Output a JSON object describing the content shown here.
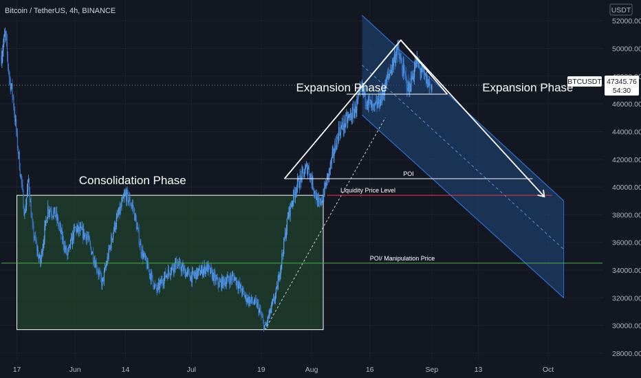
{
  "chart_data": {
    "type": "candlestick",
    "title": "Bitcoin / TetherUS, 4h, BINANCE",
    "currency": "USDT",
    "symbol": "BTCUSDT",
    "last_price_label": "47345.76",
    "countdown_label": "54:30",
    "last_price": 47345.76,
    "ylim": [
      27500,
      53500
    ],
    "y_ticks": [
      {
        "value": 28000,
        "label": "28000.00"
      },
      {
        "value": 30000,
        "label": "30000.00"
      },
      {
        "value": 32000,
        "label": "32000.00"
      },
      {
        "value": 34000,
        "label": "34000.00"
      },
      {
        "value": 36000,
        "label": "36000.00"
      },
      {
        "value": 38000,
        "label": "38000.00"
      },
      {
        "value": 40000,
        "label": "40000.00"
      },
      {
        "value": 42000,
        "label": "42000.00"
      },
      {
        "value": 44000,
        "label": "44000.00"
      },
      {
        "value": 46000,
        "label": "46000.00"
      },
      {
        "value": 48000,
        "label": "48000.00"
      },
      {
        "value": 50000,
        "label": "50000.00"
      },
      {
        "value": 52000,
        "label": "52000.00"
      }
    ],
    "x_ticks": [
      {
        "date": "2021-05-17",
        "label": "17"
      },
      {
        "date": "2021-06-01",
        "label": "Jun"
      },
      {
        "date": "2021-06-14",
        "label": "14"
      },
      {
        "date": "2021-07-01",
        "label": "Jul"
      },
      {
        "date": "2021-07-19",
        "label": "19"
      },
      {
        "date": "2021-08-01",
        "label": "Aug"
      },
      {
        "date": "2021-08-16",
        "label": "16"
      },
      {
        "date": "2021-09-01",
        "label": "Sep"
      },
      {
        "date": "2021-09-13",
        "label": "13"
      },
      {
        "date": "2021-10-01",
        "label": "Oct"
      }
    ],
    "xlim": [
      "2021-05-13",
      "2021-10-15"
    ],
    "price_path": [
      {
        "date": "2021-05-13",
        "price": 49500
      },
      {
        "date": "2021-05-14",
        "price": 51000
      },
      {
        "date": "2021-05-15",
        "price": 48000
      },
      {
        "date": "2021-05-16",
        "price": 46500
      },
      {
        "date": "2021-05-17",
        "price": 43500
      },
      {
        "date": "2021-05-19",
        "price": 38000
      },
      {
        "date": "2021-05-20",
        "price": 40500
      },
      {
        "date": "2021-05-21",
        "price": 37000
      },
      {
        "date": "2021-05-23",
        "price": 34500
      },
      {
        "date": "2021-05-25",
        "price": 38500
      },
      {
        "date": "2021-05-27",
        "price": 38000
      },
      {
        "date": "2021-05-30",
        "price": 35000
      },
      {
        "date": "2021-06-01",
        "price": 37000
      },
      {
        "date": "2021-06-04",
        "price": 36500
      },
      {
        "date": "2021-06-08",
        "price": 33000
      },
      {
        "date": "2021-06-11",
        "price": 37000
      },
      {
        "date": "2021-06-14",
        "price": 39500
      },
      {
        "date": "2021-06-16",
        "price": 38500
      },
      {
        "date": "2021-06-18",
        "price": 35500
      },
      {
        "date": "2021-06-22",
        "price": 32500
      },
      {
        "date": "2021-06-24",
        "price": 33500
      },
      {
        "date": "2021-06-27",
        "price": 34500
      },
      {
        "date": "2021-07-01",
        "price": 33500
      },
      {
        "date": "2021-07-05",
        "price": 34200
      },
      {
        "date": "2021-07-08",
        "price": 33000
      },
      {
        "date": "2021-07-12",
        "price": 33500
      },
      {
        "date": "2021-07-15",
        "price": 32000
      },
      {
        "date": "2021-07-18",
        "price": 31500
      },
      {
        "date": "2021-07-20",
        "price": 29800
      },
      {
        "date": "2021-07-23",
        "price": 32500
      },
      {
        "date": "2021-07-26",
        "price": 38000
      },
      {
        "date": "2021-07-28",
        "price": 40000
      },
      {
        "date": "2021-07-31",
        "price": 41500
      },
      {
        "date": "2021-08-03",
        "price": 38500
      },
      {
        "date": "2021-08-05",
        "price": 40500
      },
      {
        "date": "2021-08-08",
        "price": 44000
      },
      {
        "date": "2021-08-12",
        "price": 45500
      },
      {
        "date": "2021-08-14",
        "price": 47000
      },
      {
        "date": "2021-08-17",
        "price": 45500
      },
      {
        "date": "2021-08-19",
        "price": 46500
      },
      {
        "date": "2021-08-22",
        "price": 49000
      },
      {
        "date": "2021-08-23",
        "price": 50000
      },
      {
        "date": "2021-08-26",
        "price": 47000
      },
      {
        "date": "2021-08-28",
        "price": 49000
      },
      {
        "date": "2021-08-31",
        "price": 47500
      },
      {
        "date": "2021-09-01",
        "price": 47345.76
      }
    ],
    "levels": [
      {
        "label": "POI",
        "price": 40600,
        "from": "2021-07-25",
        "to": "2021-09-27",
        "color": "#ffffff"
      },
      {
        "label": "Liquidity Price Level",
        "price": 39400,
        "from": "2021-08-05",
        "to": "2021-10-02",
        "color": "#f23645"
      },
      {
        "label": "POI/ Manipulation Price",
        "price": 34500,
        "from": "2021-05-13",
        "to": "2021-10-15",
        "color": "#4caf50"
      }
    ],
    "phases": [
      {
        "label": "Consolidation Phase",
        "date": "2021-06-02",
        "price": 40200
      },
      {
        "label": "Expansion Phase",
        "date": "2021-07-28",
        "price": 46900
      },
      {
        "label": "Expansion Phase",
        "date": "2021-09-14",
        "price": 46900
      }
    ],
    "consolidation_box": {
      "from": "2021-05-17",
      "to": "2021-08-04",
      "price_top": 39400,
      "price_bottom": 29700
    },
    "trendline": {
      "from_date": "2021-07-20",
      "from_price": 29700,
      "to_date": "2021-08-20",
      "to_price": 45000
    },
    "triangle": {
      "left_date": "2021-07-25",
      "left_price": 40600,
      "apex_date": "2021-08-24",
      "apex_price": 50600,
      "right_date": "2021-09-05",
      "right_price": 46700
    },
    "channel": {
      "upper_start": {
        "date": "2021-08-14",
        "price": 52400
      },
      "upper_end": {
        "date": "2021-10-05",
        "price": 39000
      },
      "lower_start": {
        "date": "2021-08-14",
        "price": 45200
      },
      "lower_end": {
        "date": "2021-10-05",
        "price": 32000
      }
    },
    "projection_arrow": {
      "from_date": "2021-08-24",
      "from_price": 50600,
      "to_date": "2021-09-30",
      "to_price": 39300
    },
    "colors": {
      "background": "#131722",
      "candle": "#4f94e0",
      "consolidation_fill": "#1f3d2a",
      "channel_fill": "#1d3d66",
      "channel_edge": "#2f6fd0",
      "annotation": "#ffffff"
    }
  }
}
